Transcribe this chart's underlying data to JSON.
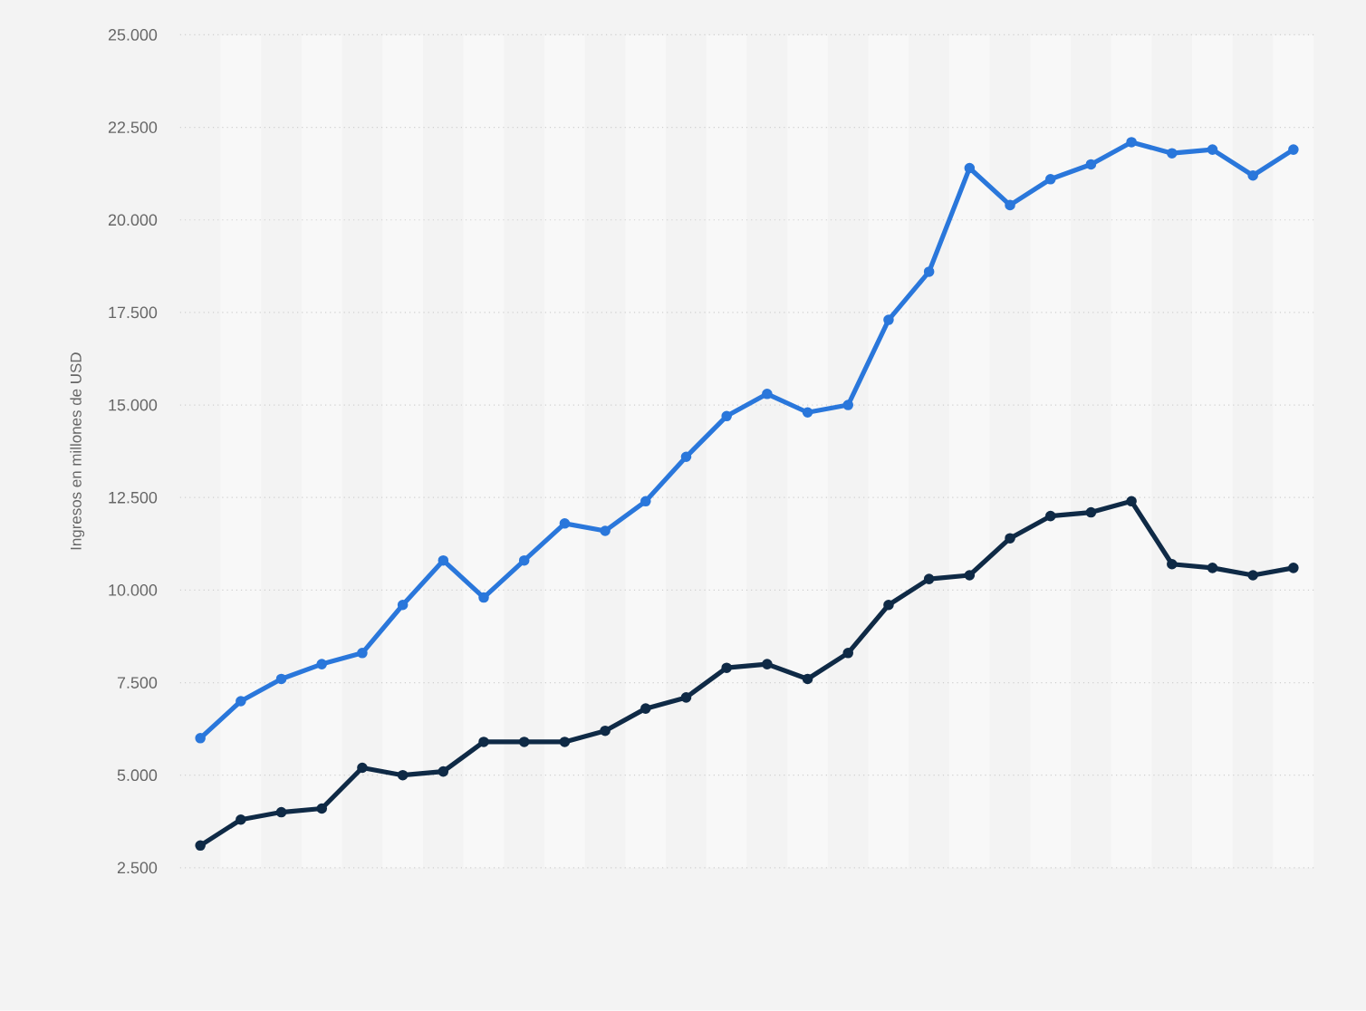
{
  "chart_data": {
    "type": "line",
    "ylabel": "Ingresos en millones de USD",
    "categories": [
      null,
      null,
      null,
      null,
      null,
      null,
      null,
      null,
      null,
      null,
      null,
      null,
      null,
      null,
      null,
      null,
      null,
      null,
      null,
      null,
      null,
      null,
      null,
      null,
      null,
      null,
      null,
      null
    ],
    "series": [
      {
        "color": "#2a77db",
        "values": [
          6000,
          7000,
          7600,
          8000,
          8300,
          9600,
          10800,
          9800,
          10800,
          11800,
          11600,
          12400,
          13600,
          14700,
          15300,
          14800,
          15000,
          17300,
          18600,
          21400,
          20400,
          21100,
          21500,
          22100,
          21800,
          21900,
          21200,
          21900
        ]
      },
      {
        "color": "#0f2a46",
        "values": [
          3100,
          3800,
          4000,
          4100,
          5200,
          5000,
          5100,
          5900,
          5900,
          5900,
          6200,
          6800,
          7100,
          7900,
          8000,
          7600,
          8300,
          9600,
          10300,
          10400,
          11400,
          12000,
          12100,
          12400,
          10700,
          10600,
          10400,
          10600
        ]
      }
    ],
    "ylim": [
      2500,
      25000
    ],
    "yticks": [
      {
        "value": 2500,
        "label": "2.500"
      },
      {
        "value": 5000,
        "label": "5.000"
      },
      {
        "value": 7500,
        "label": "7.500"
      },
      {
        "value": 10000,
        "label": "10.000"
      },
      {
        "value": 12500,
        "label": "12.500"
      },
      {
        "value": 15000,
        "label": "15.000"
      },
      {
        "value": 17500,
        "label": "17.500"
      },
      {
        "value": 20000,
        "label": "20.000"
      },
      {
        "value": 22500,
        "label": "22.500"
      },
      {
        "value": 25000,
        "label": "25.000"
      }
    ],
    "grid": "y",
    "tick_labels": "y",
    "marker": "circle",
    "line_style": "solid"
  }
}
